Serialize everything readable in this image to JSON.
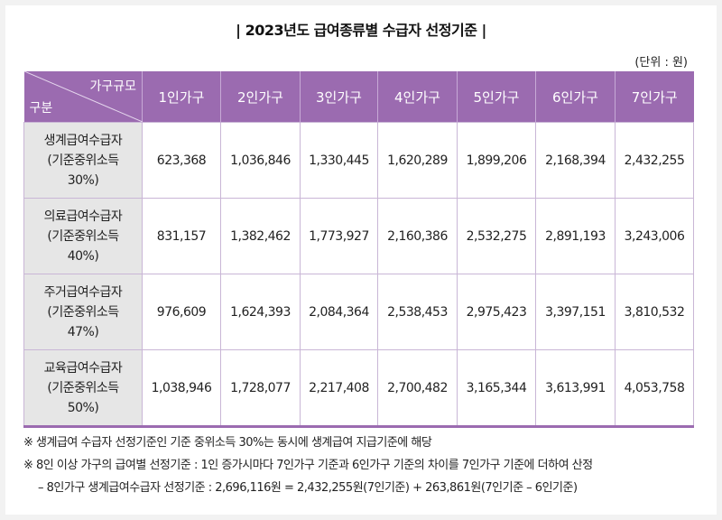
{
  "title": "| 2023년도 급여종류별 수급자 선정기준 |",
  "unit": "(단위 : 원)",
  "table": {
    "corner_top": "가구규모",
    "corner_bottom": "구분",
    "columns": [
      "1인가구",
      "2인가구",
      "3인가구",
      "4인가구",
      "5인가구",
      "6인가구",
      "7인가구"
    ],
    "rows": [
      {
        "label1": "생계급여수급자",
        "label2": "(기준중위소득",
        "label3": "30%)",
        "values": [
          "623,368",
          "1,036,846",
          "1,330,445",
          "1,620,289",
          "1,899,206",
          "2,168,394",
          "2,432,255"
        ]
      },
      {
        "label1": "의료급여수급자",
        "label2": "(기준중위소득",
        "label3": "40%)",
        "values": [
          "831,157",
          "1,382,462",
          "1,773,927",
          "2,160,386",
          "2,532,275",
          "2,891,193",
          "3,243,006"
        ]
      },
      {
        "label1": "주거급여수급자",
        "label2": "(기준중위소득",
        "label3": "47%)",
        "values": [
          "976,609",
          "1,624,393",
          "2,084,364",
          "2,538,453",
          "2,975,423",
          "3,397,151",
          "3,810,532"
        ]
      },
      {
        "label1": "교육급여수급자",
        "label2": "(기준중위소득",
        "label3": "50%)",
        "values": [
          "1,038,946",
          "1,728,077",
          "2,217,408",
          "2,700,482",
          "3,165,344",
          "3,613,991",
          "4,053,758"
        ]
      }
    ]
  },
  "notes": [
    "※ 생계급여 수급자 선정기준인 기준 중위소득 30%는 동시에 생계급여 지급기준에 해당",
    "※ 8인 이상 가구의 급여별 선정기준 : 1인 증가시마다 7인가구 기준과 6인가구 기준의 차이를 7인가구 기준에 더하여 산정",
    "–  8인가구 생계급여수급자 선정기준 : 2,696,116원 = 2,432,255원(7인기준) + 263,861원(7인기준 – 6인기준)"
  ],
  "colors": {
    "header": "#9b6bb0",
    "rowheader": "#e6e6e6"
  }
}
